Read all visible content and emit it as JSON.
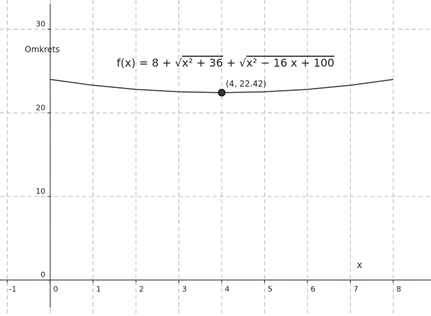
{
  "chart_data": {
    "type": "line",
    "x": [
      0,
      1,
      2,
      3,
      4,
      5,
      6,
      7,
      8
    ],
    "series": [
      {
        "color": "#333333",
        "values": [
          24,
          23.3,
          22.81,
          22.52,
          22.42,
          22.52,
          22.81,
          23.3,
          24
        ]
      }
    ],
    "xlim": [
      -1.17,
      8.88
    ],
    "ylim": [
      -4.3,
      33.5
    ],
    "xticks": [
      -1,
      0,
      1,
      2,
      3,
      4,
      5,
      6,
      7,
      8
    ],
    "yticks": [
      0,
      10,
      20,
      30
    ],
    "grid": true,
    "xlabel": "x",
    "ylabel": "Omkrets",
    "formula": [
      "f(x)  =  8 + √",
      "x² + 36",
      " + √",
      "x² − 16 x + 100"
    ],
    "point": {
      "x": 4,
      "y": 22.42,
      "label": "(4, 22.42)",
      "color": "#333333"
    }
  }
}
